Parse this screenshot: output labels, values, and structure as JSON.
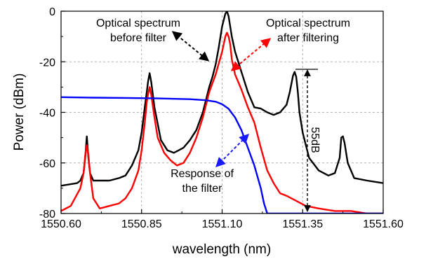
{
  "chart_data": {
    "type": "line",
    "xlabel": "wavelength (nm)",
    "ylabel": "Power (dBm)",
    "xlim": [
      1550.6,
      1551.6
    ],
    "ylim": [
      -80,
      0
    ],
    "xticks": [
      "1550.60",
      "1550.85",
      "1551.10",
      "1551.35",
      "1551.60"
    ],
    "xtick_values": [
      1550.6,
      1550.85,
      1551.1,
      1551.35,
      1551.6
    ],
    "yticks": [
      "0",
      "-20",
      "-40",
      "-60",
      "-80"
    ],
    "ytick_values": [
      0,
      -20,
      -40,
      -60,
      -80
    ],
    "grid": true,
    "series": [
      {
        "color": "#000000",
        "line": "before",
        "x": [
          1550.6,
          1550.65,
          1550.66,
          1550.67,
          1550.675,
          1550.68,
          1550.685,
          1550.69,
          1550.7,
          1550.72,
          1550.75,
          1550.78,
          1550.8,
          1550.82,
          1550.84,
          1550.85,
          1550.86,
          1550.866,
          1550.87,
          1550.875,
          1550.88,
          1550.89,
          1550.91,
          1550.93,
          1550.95,
          1550.98,
          1551.0,
          1551.02,
          1551.04,
          1551.05,
          1551.06,
          1551.07,
          1551.08,
          1551.09,
          1551.1,
          1551.11,
          1551.115,
          1551.12,
          1551.125,
          1551.13,
          1551.14,
          1551.15,
          1551.16,
          1551.18,
          1551.2,
          1551.22,
          1551.24,
          1551.26,
          1551.28,
          1551.3,
          1551.31,
          1551.32,
          1551.325,
          1551.33,
          1551.335,
          1551.34,
          1551.35,
          1551.37,
          1551.4,
          1551.43,
          1551.45,
          1551.465,
          1551.47,
          1551.475,
          1551.48,
          1551.49,
          1551.51,
          1551.55,
          1551.6
        ],
        "y": [
          -69,
          -68,
          -67,
          -64,
          -58,
          -49.5,
          -58,
          -64,
          -67,
          -67,
          -67,
          -66,
          -65,
          -61,
          -55,
          -48,
          -38,
          -32,
          -28,
          -24.5,
          -28,
          -38,
          -51,
          -55,
          -56,
          -54,
          -51,
          -47,
          -40,
          -35,
          -30,
          -26,
          -21,
          -14,
          -6,
          -1,
          0,
          -2,
          -6,
          -10,
          -16,
          -20,
          -24,
          -32,
          -38,
          -38.5,
          -40,
          -41,
          -40,
          -37,
          -32,
          -25.5,
          -24,
          -26,
          -32,
          -40,
          -48,
          -58,
          -63,
          -65,
          -64,
          -58,
          -50,
          -49.5,
          -52,
          -60,
          -66,
          -67,
          -68
        ]
      },
      {
        "color": "#ff0000",
        "line": "after",
        "x": [
          1550.6,
          1550.63,
          1550.66,
          1550.67,
          1550.675,
          1550.68,
          1550.685,
          1550.69,
          1550.7,
          1550.72,
          1550.75,
          1550.78,
          1550.8,
          1550.82,
          1550.84,
          1550.85,
          1550.86,
          1550.866,
          1550.87,
          1550.875,
          1550.88,
          1550.89,
          1550.9,
          1550.92,
          1550.94,
          1550.96,
          1550.98,
          1551.0,
          1551.02,
          1551.04,
          1551.06,
          1551.08,
          1551.1,
          1551.11,
          1551.115,
          1551.12,
          1551.125,
          1551.13,
          1551.14,
          1551.15,
          1551.16,
          1551.18,
          1551.2,
          1551.22,
          1551.24,
          1551.26,
          1551.28,
          1551.3,
          1551.33,
          1551.36,
          1551.4,
          1551.45,
          1551.5,
          1551.55,
          1551.6
        ],
        "y": [
          -79,
          -77,
          -70,
          -64,
          -57,
          -53,
          -57,
          -64,
          -74,
          -78,
          -77,
          -76,
          -74,
          -70,
          -63,
          -55,
          -44,
          -36,
          -33,
          -30,
          -33,
          -42,
          -50,
          -56,
          -59,
          -61,
          -60,
          -56,
          -50,
          -42,
          -32,
          -25,
          -16,
          -10,
          -8.5,
          -10,
          -13,
          -19,
          -25,
          -28,
          -31,
          -38,
          -44,
          -54,
          -63,
          -68,
          -72,
          -73,
          -75,
          -77,
          -78,
          -79,
          -79,
          -80,
          -80
        ]
      },
      {
        "color": "#0000ff",
        "line": "filter",
        "x": [
          1550.6,
          1550.7,
          1550.8,
          1550.9,
          1551.0,
          1551.05,
          1551.08,
          1551.1,
          1551.12,
          1551.14,
          1551.16,
          1551.18,
          1551.2,
          1551.22,
          1551.23,
          1551.24,
          1551.6
        ],
        "y": [
          -34,
          -34.2,
          -34.3,
          -34.5,
          -34.8,
          -35.2,
          -35.8,
          -36.8,
          -38.6,
          -42,
          -47,
          -54,
          -61,
          -70,
          -76,
          -80,
          -80
        ]
      }
    ],
    "annotations": {
      "before": [
        "Optical spectrum",
        "before filter"
      ],
      "after": [
        "Optical spectrum",
        "after filtering"
      ],
      "filter": [
        "Response of",
        "the filter"
      ],
      "dynamic_range": "55dB"
    }
  }
}
